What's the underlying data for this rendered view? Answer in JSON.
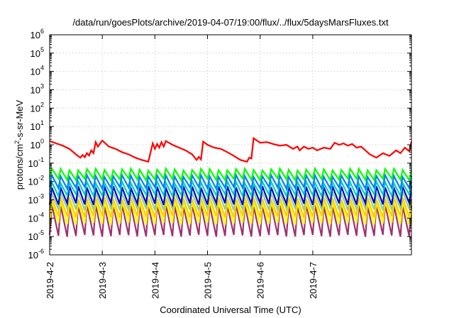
{
  "chart_data": {
    "type": "line",
    "title": "/data/run/goesPlots/archive/2019-04-07/19:00/flux/../flux/5daysMarsFluxes.txt",
    "xlabel": "Coordinated Universal Time (UTC)",
    "ylabel_base": "protons/cm",
    "ylabel_sup": "2",
    "ylabel_rest": "-s-sr-MeV",
    "y_scale": "log",
    "ylim_exponents": [
      -6,
      6
    ],
    "xlim_days": [
      "2019-4-2",
      "2019-4-7 21:00"
    ],
    "grid": true,
    "x_ticks": [
      "2019-4-2",
      "2019-4-3",
      "2019-4-4",
      "2019-4-5",
      "2019-4-6",
      "2019-4-7"
    ],
    "y_ticks": [
      {
        "base": "10",
        "exp": "6"
      },
      {
        "base": "10",
        "exp": "5"
      },
      {
        "base": "10",
        "exp": "4"
      },
      {
        "base": "10",
        "exp": "3"
      },
      {
        "base": "10",
        "exp": "2"
      },
      {
        "base": "10",
        "exp": "1"
      },
      {
        "base": "10",
        "exp": "0"
      },
      {
        "base": "10",
        "exp": "-1"
      },
      {
        "base": "10",
        "exp": "-2"
      },
      {
        "base": "10",
        "exp": "-3"
      },
      {
        "base": "10",
        "exp": "-4"
      },
      {
        "base": "10",
        "exp": "-5"
      },
      {
        "base": "10",
        "exp": "-6"
      }
    ],
    "series": [
      {
        "color": "#ff0000",
        "x_hours": [
          0,
          3,
          6,
          9,
          12,
          14,
          15,
          16,
          17,
          18,
          19,
          20,
          21,
          22,
          24,
          27,
          30,
          33,
          36,
          39,
          42,
          45,
          47,
          48,
          49,
          50,
          51,
          52,
          53,
          56,
          59,
          62,
          65,
          67,
          68,
          69,
          70,
          72,
          75,
          78,
          81,
          84,
          87,
          90,
          91,
          92,
          93,
          96,
          99,
          102,
          105,
          108,
          111,
          113,
          114,
          116,
          118,
          120,
          122,
          125,
          128,
          130,
          132,
          134,
          136,
          138,
          140,
          142,
          144,
          146,
          149,
          152,
          155,
          158,
          160,
          162,
          164,
          165
        ],
        "y": [
          1.6,
          1.2,
          0.9,
          0.6,
          0.3,
          0.2,
          0.28,
          0.21,
          0.35,
          0.26,
          0.5,
          0.35,
          1.4,
          0.8,
          1.7,
          0.8,
          0.6,
          0.4,
          0.3,
          0.2,
          0.15,
          0.12,
          1.2,
          0.6,
          1.1,
          0.7,
          1.4,
          0.8,
          1.6,
          1.0,
          0.7,
          0.5,
          0.3,
          0.15,
          0.22,
          0.16,
          1.5,
          1.0,
          0.7,
          0.6,
          0.4,
          0.25,
          0.15,
          0.12,
          0.2,
          0.18,
          2.3,
          1.3,
          1.4,
          1.1,
          0.9,
          1.0,
          0.6,
          0.8,
          0.5,
          0.8,
          0.6,
          0.7,
          0.5,
          0.7,
          0.6,
          1.3,
          1.0,
          1.2,
          0.9,
          1.1,
          0.7,
          0.8,
          0.5,
          0.3,
          0.2,
          0.35,
          0.25,
          0.5,
          0.35,
          0.7,
          0.45,
          1.5
        ]
      },
      {
        "color": "#00ff00",
        "period_hours": 4,
        "peak": 0.045,
        "trough": 0.013
      },
      {
        "color": "#0080ff",
        "period_hours": 4,
        "peak": 0.02,
        "trough": 0.0045
      },
      {
        "color": "#00cccc",
        "period_hours": 4,
        "peak": 0.009,
        "trough": 0.0018
      },
      {
        "color": "#0000d0",
        "period_hours": 4,
        "peak": 0.005,
        "trough": 0.0006
      },
      {
        "color": "#90d090",
        "period_hours": 4,
        "peak": 0.0025,
        "trough": 0.0003
      },
      {
        "color": "#ffcc00",
        "period_hours": 4,
        "peak": 0.0012,
        "trough": 0.00012
      },
      {
        "color": "#ffff00",
        "period_hours": 4,
        "peak": 0.0008,
        "trough": 5e-05
      },
      {
        "color": "#a03070",
        "period_hours": 4,
        "peak": 0.0005,
        "trough": 1.1e-05
      }
    ]
  }
}
